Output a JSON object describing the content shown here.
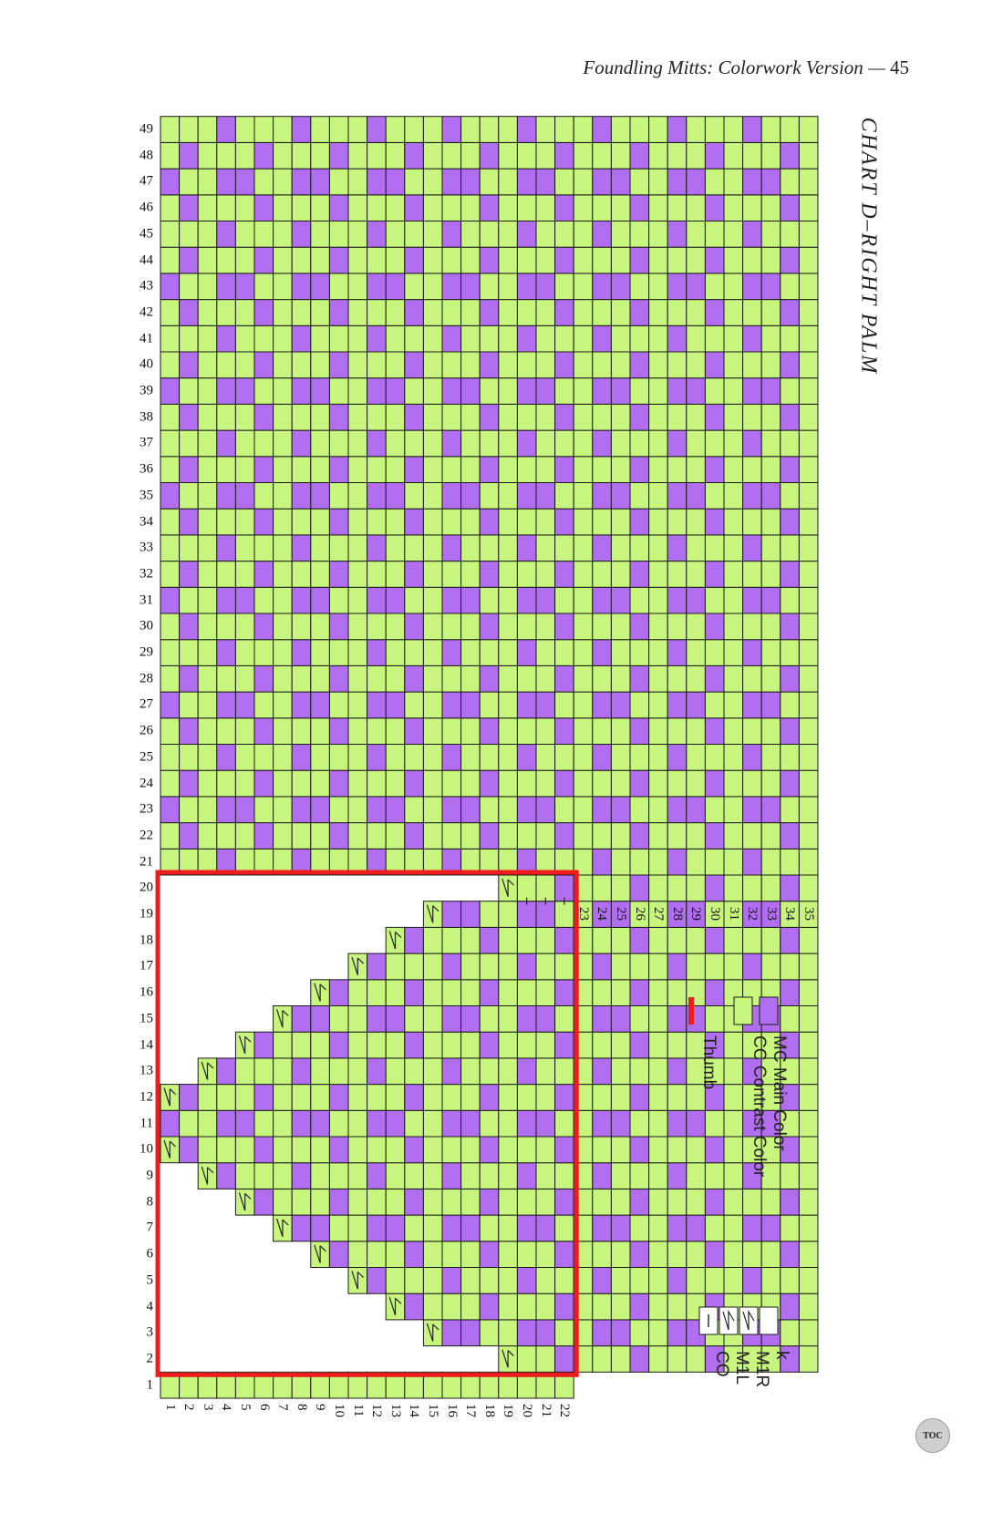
{
  "page": {
    "running_title": "Foundling Mitts: Colorwork Version",
    "separator": "—",
    "page_number": "45",
    "toc_label": "TOC"
  },
  "chart": {
    "title": "CHART D–RIGHT PALM",
    "rows": 49,
    "palm_columns": 35,
    "thumb_columns": 22,
    "colors": {
      "mc": "#b26ef0",
      "cc": "#c8f57d",
      "grid": "#1a1a1a",
      "thumb_outline": "#ee1c1c"
    },
    "thumb": {
      "first_row": 2,
      "last_row": 20,
      "start_column_by_row": {
        "2": 19,
        "3": 15,
        "4": 13,
        "5": 11,
        "6": 9,
        "7": 7,
        "8": 5,
        "9": 3,
        "10": 1,
        "11": 1,
        "12": 1,
        "13": 3,
        "14": 5,
        "15": 7,
        "16": 9,
        "17": 11,
        "18": 13,
        "19": 15,
        "20": 19
      }
    },
    "legend": {
      "mc": "MC Main Color",
      "cc": "CC Contrast Color",
      "thumb": "Thumb",
      "k": "k",
      "m1r": "M1R",
      "m1l": "M1L",
      "co": "CO"
    }
  }
}
